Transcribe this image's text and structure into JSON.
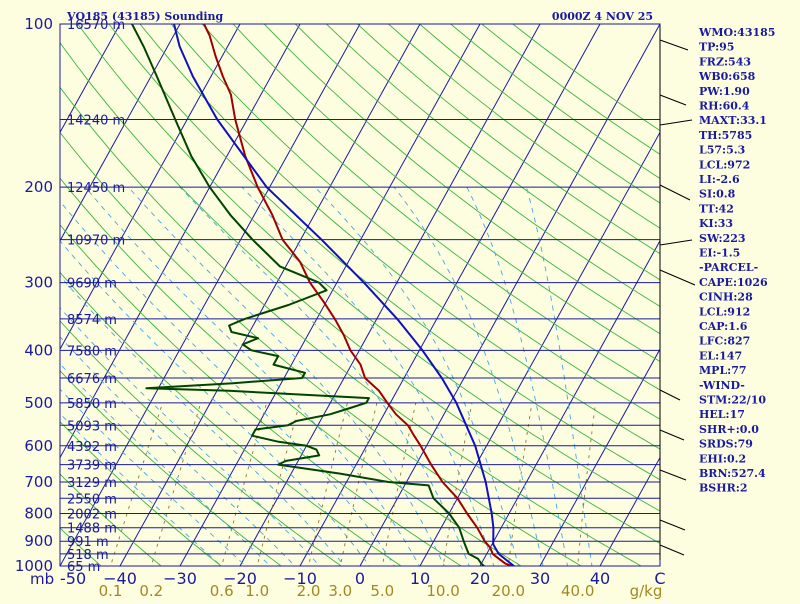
{
  "chart_data": {
    "type": "skew-t",
    "station_title": "VQ185 (43185) Sounding",
    "valid_time": "0000Z  4 NOV 25",
    "pressure_axis": {
      "range": [
        100,
        1000
      ],
      "ticks": [
        100,
        200,
        300,
        400,
        500,
        600,
        700,
        800,
        900,
        1000
      ],
      "label": "mb"
    },
    "temperature_axis": {
      "range": [
        -50,
        50
      ],
      "ticks": [
        -50,
        -40,
        -30,
        -20,
        -10,
        0,
        10,
        20,
        30,
        40
      ],
      "tick_labels": [
        "-50",
        "−40",
        "−30",
        "−20",
        "−10",
        "0",
        "10",
        "20",
        "30",
        "40"
      ],
      "end_label": "C"
    },
    "mixing_ratio_axis": {
      "ticks": [
        "0.1",
        "0.2",
        "0.6",
        "1.0",
        "2.0",
        "3.0",
        "5.0",
        "10.0",
        "20.0",
        "40.0"
      ],
      "unit": "g/kg"
    },
    "height_levels": [
      {
        "p": 100,
        "label": "16570 m"
      },
      {
        "p": 150,
        "label": "14240 m"
      },
      {
        "p": 200,
        "label": "12450 m"
      },
      {
        "p": 250,
        "label": "10970 m"
      },
      {
        "p": 300,
        "label": "9690 m"
      },
      {
        "p": 350,
        "label": "8574 m"
      },
      {
        "p": 400,
        "label": "7580 m"
      },
      {
        "p": 450,
        "label": "6676 m"
      },
      {
        "p": 500,
        "label": "5850 m"
      },
      {
        "p": 550,
        "label": "5093 m"
      },
      {
        "p": 600,
        "label": "4392 m"
      },
      {
        "p": 650,
        "label": "3739 m"
      },
      {
        "p": 700,
        "label": "3129 m"
      },
      {
        "p": 750,
        "label": "2550 m"
      },
      {
        "p": 800,
        "label": "2002 m"
      },
      {
        "p": 850,
        "label": "1488 m"
      },
      {
        "p": 900,
        "label": "991 m"
      },
      {
        "p": 950,
        "label": "518 m"
      },
      {
        "p": 1000,
        "label": "65 m"
      }
    ],
    "series": [
      {
        "name": "temperature",
        "color": "#a00000",
        "points": [
          [
            1005,
            26
          ],
          [
            990,
            24
          ],
          [
            970,
            22.5
          ],
          [
            950,
            21
          ],
          [
            925,
            20
          ],
          [
            900,
            18.5
          ],
          [
            850,
            16
          ],
          [
            800,
            13
          ],
          [
            750,
            10
          ],
          [
            700,
            6
          ],
          [
            650,
            2.5
          ],
          [
            600,
            -1
          ],
          [
            575,
            -3
          ],
          [
            550,
            -5
          ],
          [
            525,
            -8
          ],
          [
            500,
            -10.5
          ],
          [
            475,
            -13
          ],
          [
            450,
            -16.5
          ],
          [
            425,
            -18.5
          ],
          [
            400,
            -21.5
          ],
          [
            375,
            -24
          ],
          [
            350,
            -27
          ],
          [
            325,
            -30.5
          ],
          [
            300,
            -34.5
          ],
          [
            275,
            -38
          ],
          [
            250,
            -43
          ],
          [
            225,
            -47
          ],
          [
            200,
            -52
          ],
          [
            175,
            -57
          ],
          [
            150,
            -62
          ],
          [
            135,
            -65
          ],
          [
            125,
            -68
          ],
          [
            115,
            -71
          ],
          [
            105,
            -74
          ],
          [
            100,
            -76
          ]
        ]
      },
      {
        "name": "dewpoint",
        "color": "#004400",
        "points": [
          [
            1005,
            21
          ],
          [
            990,
            20
          ],
          [
            970,
            19
          ],
          [
            950,
            17
          ],
          [
            925,
            16
          ],
          [
            900,
            15
          ],
          [
            850,
            13
          ],
          [
            800,
            10
          ],
          [
            750,
            6
          ],
          [
            710,
            4
          ],
          [
            700,
            -3
          ],
          [
            675,
            -12
          ],
          [
            650,
            -23
          ],
          [
            640,
            -22
          ],
          [
            625,
            -17
          ],
          [
            610,
            -18
          ],
          [
            600,
            -20
          ],
          [
            590,
            -25
          ],
          [
            575,
            -30
          ],
          [
            560,
            -30
          ],
          [
            550,
            -25
          ],
          [
            540,
            -24
          ],
          [
            525,
            -19
          ],
          [
            510,
            -16
          ],
          [
            500,
            -14
          ],
          [
            490,
            -14
          ],
          [
            480,
            -30
          ],
          [
            475,
            -38
          ],
          [
            470,
            -52
          ],
          [
            460,
            -38
          ],
          [
            450,
            -27
          ],
          [
            440,
            -27
          ],
          [
            425,
            -33
          ],
          [
            410,
            -33
          ],
          [
            400,
            -38
          ],
          [
            390,
            -40
          ],
          [
            380,
            -38
          ],
          [
            370,
            -43
          ],
          [
            360,
            -44
          ],
          [
            350,
            -42
          ],
          [
            330,
            -36
          ],
          [
            310,
            -31
          ],
          [
            300,
            -33
          ],
          [
            280,
            -41
          ],
          [
            250,
            -48
          ],
          [
            225,
            -54
          ],
          [
            200,
            -60
          ],
          [
            175,
            -66
          ],
          [
            150,
            -72
          ],
          [
            125,
            -79
          ],
          [
            110,
            -84
          ],
          [
            100,
            -88
          ]
        ]
      },
      {
        "name": "parcel",
        "color": "#1010c0",
        "points": [
          [
            1005,
            26
          ],
          [
            950,
            22
          ],
          [
            912,
            20.2
          ],
          [
            850,
            18.7
          ],
          [
            800,
            17.1
          ],
          [
            700,
            13.2
          ],
          [
            600,
            8.1
          ],
          [
            500,
            1.0
          ],
          [
            450,
            -3.7
          ],
          [
            400,
            -9.5
          ],
          [
            350,
            -16.6
          ],
          [
            300,
            -25.5
          ],
          [
            250,
            -36.5
          ],
          [
            200,
            -50.5
          ],
          [
            150,
            -65
          ],
          [
            125,
            -73
          ],
          [
            110,
            -78
          ],
          [
            100,
            -81
          ]
        ]
      }
    ]
  },
  "indices": [
    "WMO:43185",
    "TP:95",
    "FRZ:543",
    "WB0:658",
    "PW:1.90",
    "RH:60.4",
    "MAXT:33.1",
    "TH:5785",
    "L57:5.3",
    "LCL:972",
    "LI:-2.6",
    "SI:0.8",
    "TT:42",
    "KI:33",
    "SW:223",
    "EI:-1.5",
    "-PARCEL-",
    "CAPE:1026",
    "CINH:28",
    "LCL:912",
    "CAP:1.6",
    "LFC:827",
    "EL:147",
    "MPL:77",
    "-WIND-",
    "STM:22/10",
    "HEL:17",
    "SHR+:0.0",
    "SRDS:79",
    "EHI:0.2",
    "BRN:527.4",
    "BSHR:2"
  ],
  "colors": {
    "background": "#fdfde0",
    "isobar": "#1a1aa0",
    "isotherm": "#1a1aa0",
    "dry_adiabat": "#3cb43c",
    "moist_adiabat": "#46a6e6",
    "mixing_ratio": "#8a7a30",
    "temperature": "#a00000",
    "dewpoint": "#004400",
    "parcel": "#1010c0",
    "text": "#1a1aa0",
    "mixing_label": "#a08a20"
  }
}
